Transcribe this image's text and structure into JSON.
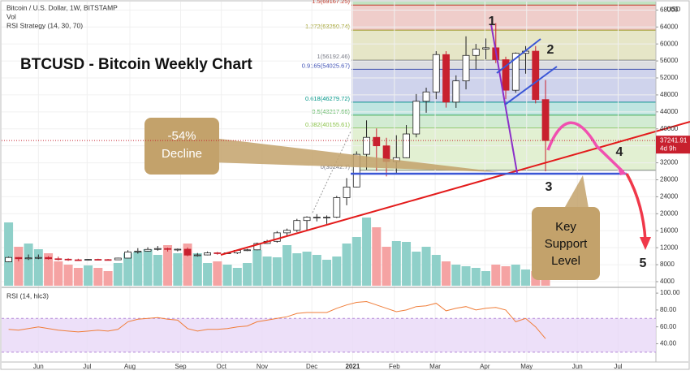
{
  "chart_data": {
    "type": "candlestick",
    "title": "BTCUSD - Bitcoin Weekly Chart",
    "header": [
      "Bitcoin / U.S. Dollar, 1W, BITSTAMP",
      "Vol",
      "RSI Strategy (14, 30, 70)"
    ],
    "currency": "USD",
    "xlim": [
      -0.7,
      65.1
    ],
    "xticks": [
      {
        "value": 3.0,
        "label": "Jun"
      },
      {
        "value": 7.9,
        "label": "Jul"
      },
      {
        "value": 12.2,
        "label": "Aug"
      },
      {
        "value": 17.3,
        "label": "Sep"
      },
      {
        "value": 21.4,
        "label": "Oct"
      },
      {
        "value": 25.5,
        "label": "Nov"
      },
      {
        "value": 30.5,
        "label": "Dec"
      },
      {
        "value": 34.6,
        "label": "2021"
      },
      {
        "value": 38.8,
        "label": "Feb"
      },
      {
        "value": 42.9,
        "label": "Mar"
      },
      {
        "value": 47.9,
        "label": "Apr"
      },
      {
        "value": 52.1,
        "label": "May"
      },
      {
        "value": 57.2,
        "label": "Jun"
      },
      {
        "value": 61.3,
        "label": "Jul"
      }
    ],
    "ylim": [
      4000,
      73800
    ],
    "yticks": [
      4000,
      8000,
      12000,
      16000,
      20000,
      24000,
      28000,
      32000,
      36000,
      40000,
      44000,
      48000,
      52000,
      56000,
      60000,
      64000,
      68000
    ],
    "up_color": "#ffffff",
    "down_color": "#c8202e",
    "open": [
      8700,
      9700,
      9400,
      9600,
      9700,
      9400,
      9300,
      9150,
      9050,
      9250,
      9200,
      9150,
      9550,
      11000,
      11200,
      11600,
      11800,
      11600,
      11650,
      10250,
      10300,
      10800,
      10700,
      10780,
      11380,
      11500,
      13000,
      13500,
      15500,
      16100,
      18400,
      19200,
      19200,
      19200,
      23800,
      26300,
      34000,
      38000,
      36000,
      32300,
      33200,
      38800,
      46500,
      48700,
      57500,
      46300,
      51300,
      57300,
      58800,
      59100,
      56300,
      49100,
      57800,
      58300,
      46900
    ],
    "high": [
      9900,
      9800,
      10400,
      10400,
      10000,
      9900,
      9500,
      9400,
      9300,
      9400,
      9350,
      9650,
      11400,
      11900,
      12100,
      12400,
      12000,
      11800,
      12050,
      10750,
      11100,
      11000,
      10950,
      11450,
      11720,
      13200,
      13850,
      15900,
      16500,
      18800,
      19400,
      19900,
      19600,
      24200,
      28400,
      34700,
      42000,
      40100,
      37900,
      38500,
      40900,
      48200,
      49700,
      58300,
      58300,
      52600,
      61800,
      60000,
      61300,
      64900,
      57000,
      58000,
      59500,
      59500,
      51500
    ],
    "low": [
      8600,
      8800,
      9100,
      9300,
      9200,
      9000,
      8900,
      8900,
      8950,
      9050,
      9050,
      9100,
      9500,
      10600,
      11100,
      11300,
      11100,
      11150,
      10000,
      9900,
      10200,
      10350,
      10550,
      10500,
      11200,
      11400,
      12900,
      13200,
      14800,
      15700,
      16200,
      18200,
      17600,
      19000,
      22000,
      26200,
      30400,
      30100,
      28800,
      29300,
      33100,
      38000,
      43800,
      47000,
      45000,
      44950,
      49300,
      54000,
      56400,
      55500,
      47000,
      48500,
      53000,
      46000,
      30000
    ],
    "close": [
      9700,
      9400,
      9600,
      9700,
      9400,
      9300,
      9150,
      9050,
      9250,
      9200,
      9150,
      9550,
      11000,
      11200,
      11600,
      11800,
      11600,
      11650,
      10250,
      10300,
      10800,
      10700,
      10780,
      11380,
      11500,
      13000,
      13500,
      15500,
      16100,
      18400,
      19200,
      19200,
      19200,
      23800,
      26300,
      34000,
      38000,
      36000,
      32300,
      33200,
      38800,
      46500,
      48700,
      57500,
      46300,
      51300,
      57300,
      58800,
      59100,
      56300,
      49100,
      57800,
      58300,
      46900,
      37241.91
    ],
    "last_price": {
      "value": 37241.91,
      "label": "37241.91"
    },
    "countdown": "4d 9h",
    "volume": {
      "name": "Vol",
      "up_color": "#8fd0c9",
      "down_color": "#f5a3a3",
      "values": [
        78,
        48,
        52,
        45,
        40,
        30,
        26,
        22,
        25,
        22,
        18,
        28,
        40,
        42,
        45,
        38,
        50,
        40,
        52,
        40,
        28,
        30,
        26,
        22,
        28,
        44,
        36,
        35,
        50,
        40,
        42,
        38,
        32,
        36,
        52,
        60,
        84,
        72,
        48,
        55,
        54,
        42,
        48,
        38,
        30,
        26,
        24,
        22,
        18,
        26,
        24,
        26,
        20,
        18,
        22
      ]
    },
    "fib_levels": [
      {
        "label": "0(30242.7)",
        "value": 30242.7,
        "color": "#787b86"
      },
      {
        "label": "0.382(40155.61)",
        "value": 40155.61,
        "color": "#8bc34a"
      },
      {
        "label": "0.5(43217.66)",
        "value": 43217.66,
        "color": "#4caf50"
      },
      {
        "label": "0.618(46279.72)",
        "value": 46279.72,
        "color": "#009688"
      },
      {
        "label": "0.9165(54025.67)",
        "value": 54025.67,
        "color": "#3f51b5"
      },
      {
        "label": "1(56192.46)",
        "value": 56192.46,
        "color": "#787b86"
      },
      {
        "label": "1.272(63250.74)",
        "value": 63250.74,
        "color": "#9c9c20"
      },
      {
        "label": "1.5(69167.25)",
        "value": 69167.25,
        "color": "#c0392b"
      }
    ],
    "rsi": {
      "title": "RSI (14, hlc3)",
      "color": "#f07e3a",
      "values": [
        57,
        56,
        58,
        60,
        58,
        56,
        55,
        54,
        55,
        56,
        55,
        57,
        66,
        69,
        70,
        71,
        69,
        68,
        58,
        55,
        57,
        57,
        58,
        60,
        61,
        66,
        68,
        70,
        72,
        76,
        77,
        77,
        77,
        82,
        86,
        89,
        90,
        86,
        82,
        78,
        80,
        84,
        85,
        88,
        79,
        82,
        84,
        80,
        82,
        83,
        80,
        66,
        70,
        60,
        46
      ],
      "ylim": [
        26,
        103
      ],
      "band": [
        30,
        70
      ],
      "yticks": [
        {
          "value": 100,
          "label": "100.00"
        },
        {
          "value": 80,
          "label": "80.00"
        },
        {
          "value": 60,
          "label": "60.00"
        },
        {
          "value": 40,
          "label": "40.00"
        }
      ]
    },
    "annotations": {
      "decline": [
        "-54%",
        "Decline"
      ],
      "support": [
        "Key",
        "Support",
        "Level"
      ],
      "points": [
        "1",
        "2",
        "3",
        "4",
        "5"
      ]
    }
  }
}
